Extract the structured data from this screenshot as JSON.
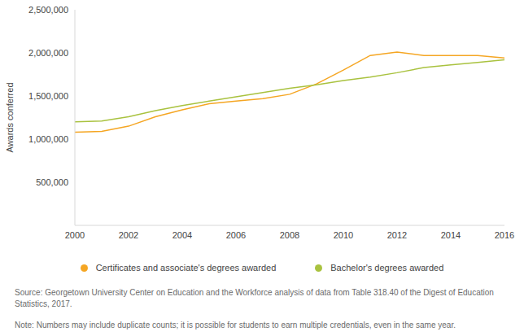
{
  "chart_data": {
    "type": "line",
    "y_label": "Awards conferred",
    "x": [
      2000,
      2001,
      2002,
      2003,
      2004,
      2005,
      2006,
      2007,
      2008,
      2009,
      2010,
      2011,
      2012,
      2013,
      2014,
      2015,
      2016
    ],
    "series": [
      {
        "name": "Certificates and associate's degrees awarded",
        "color": "#f5a623",
        "values": [
          1080000,
          1090000,
          1150000,
          1260000,
          1340000,
          1410000,
          1440000,
          1470000,
          1520000,
          1640000,
          1800000,
          1970000,
          2010000,
          1970000,
          1970000,
          1970000,
          1940000
        ]
      },
      {
        "name": "Bachelor's degrees awarded",
        "color": "#a9c23f",
        "values": [
          1200000,
          1210000,
          1260000,
          1330000,
          1390000,
          1440000,
          1490000,
          1540000,
          1590000,
          1630000,
          1680000,
          1720000,
          1770000,
          1830000,
          1860000,
          1890000,
          1920000
        ]
      }
    ],
    "xlim": [
      2000,
      2016
    ],
    "xticks": [
      2000,
      2002,
      2004,
      2006,
      2008,
      2010,
      2012,
      2014,
      2016
    ],
    "ylim": [
      0,
      2500000
    ],
    "yticks": [
      {
        "value": 500000,
        "label": "500,000"
      },
      {
        "value": 1000000,
        "label": "1,000,000"
      },
      {
        "value": 1500000,
        "label": "1,500,000"
      },
      {
        "value": 2000000,
        "label": "2,000,000"
      },
      {
        "value": 2500000,
        "label": "2,500,000"
      }
    ],
    "grid": false,
    "legend": "bottom",
    "annotations": [
      "Source: Georgetown University Center on Education and the Workforce analysis of data from Table 318.40 of the Digest of Education Statistics, 2017.",
      "Note: Numbers may include duplicate counts; it is possible for students to earn multiple credentials, even in the same year."
    ]
  }
}
